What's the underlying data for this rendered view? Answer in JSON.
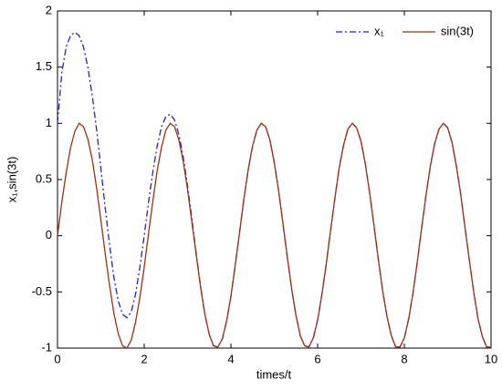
{
  "chart_data": {
    "type": "line",
    "x_label": "times/t",
    "y_label": "x₁,sin(3t)",
    "x": [
      0,
      0.1,
      0.2,
      0.3,
      0.4,
      0.5,
      0.6,
      0.7,
      0.8,
      0.9,
      1,
      1.1,
      1.2,
      1.3,
      1.4,
      1.5,
      1.6,
      1.7,
      1.8,
      1.9,
      2,
      2.1,
      2.2,
      2.3,
      2.4,
      2.5,
      2.6,
      2.7,
      2.8,
      2.9,
      3,
      3.1,
      3.2,
      3.3,
      3.4,
      3.5,
      3.6,
      3.7,
      3.8,
      3.9,
      4,
      4.1,
      4.2,
      4.3,
      4.4,
      4.5,
      4.6,
      4.7,
      4.8,
      4.9,
      5,
      5.1,
      5.2,
      5.3,
      5.4,
      5.5,
      5.6,
      5.7,
      5.8,
      5.9,
      6,
      6.1,
      6.2,
      6.3,
      6.4,
      6.5,
      6.6,
      6.7,
      6.8,
      6.9,
      7,
      7.1,
      7.2,
      7.3,
      7.4,
      7.5,
      7.6,
      7.7,
      7.8,
      7.9,
      8,
      8.1,
      8.2,
      8.3,
      8.4,
      8.5,
      8.6,
      8.7,
      8.8,
      8.9,
      9,
      9.1,
      9.2,
      9.3,
      9.4,
      9.5,
      9.6,
      9.7,
      9.8,
      9.9,
      10
    ],
    "series": [
      {
        "name": "x₁",
        "color": "#2222cc",
        "dash": "dashdot",
        "values": [
          1.0,
          1.45,
          1.68,
          1.78,
          1.81,
          1.78,
          1.68,
          1.5,
          1.25,
          0.95,
          0.6,
          0.25,
          -0.08,
          -0.37,
          -0.58,
          -0.7,
          -0.73,
          -0.68,
          -0.52,
          -0.28,
          0.0,
          0.3,
          0.57,
          0.8,
          0.97,
          1.06,
          1.08,
          1.03,
          0.9,
          0.7,
          0.44,
          0.15,
          -0.16,
          -0.45,
          -0.7,
          -0.88,
          -0.98,
          -0.99,
          -0.92,
          -0.76,
          -0.54,
          -0.26,
          0.03,
          0.33,
          0.59,
          0.8,
          0.94,
          1.0,
          0.97,
          0.85,
          0.65,
          0.4,
          0.11,
          -0.19,
          -0.47,
          -0.71,
          -0.89,
          -0.98,
          -0.99,
          -0.91,
          -0.75,
          -0.52,
          -0.25,
          0.05,
          0.34,
          0.61,
          0.81,
          0.95,
          1.0,
          0.96,
          0.84,
          0.64,
          0.38,
          0.09,
          -0.21,
          -0.49,
          -0.72,
          -0.89,
          -0.99,
          -0.99,
          -0.91,
          -0.74,
          -0.51,
          -0.23,
          0.07,
          0.36,
          0.62,
          0.82,
          0.95,
          1.0,
          0.96,
          0.83,
          0.62,
          0.37,
          0.07,
          -0.22,
          -0.5,
          -0.74,
          -0.9,
          -0.99,
          -0.99
        ]
      },
      {
        "name": "sin(3t)",
        "color": "#993311",
        "dash": "solid",
        "values": [
          0.0,
          0.3,
          0.56,
          0.78,
          0.93,
          1.0,
          0.97,
          0.86,
          0.68,
          0.43,
          0.14,
          -0.16,
          -0.44,
          -0.69,
          -0.87,
          -0.98,
          -1.0,
          -0.93,
          -0.77,
          -0.55,
          -0.28,
          0.02,
          0.31,
          0.58,
          0.79,
          0.94,
          1.0,
          0.97,
          0.85,
          0.66,
          0.41,
          0.12,
          -0.17,
          -0.46,
          -0.7,
          -0.88,
          -0.98,
          -0.99,
          -0.92,
          -0.76,
          -0.54,
          -0.26,
          0.03,
          0.33,
          0.59,
          0.8,
          0.94,
          1.0,
          0.97,
          0.85,
          0.65,
          0.4,
          0.11,
          -0.19,
          -0.47,
          -0.71,
          -0.89,
          -0.98,
          -0.99,
          -0.91,
          -0.75,
          -0.52,
          -0.25,
          0.05,
          0.34,
          0.61,
          0.81,
          0.95,
          1.0,
          0.96,
          0.84,
          0.64,
          0.38,
          0.09,
          -0.21,
          -0.49,
          -0.72,
          -0.89,
          -0.99,
          -0.99,
          -0.91,
          -0.74,
          -0.51,
          -0.23,
          0.07,
          0.36,
          0.62,
          0.82,
          0.95,
          1.0,
          0.96,
          0.83,
          0.62,
          0.37,
          0.07,
          -0.22,
          -0.5,
          -0.74,
          -0.9,
          -0.99,
          -0.99
        ]
      }
    ],
    "xlim": [
      0,
      10
    ],
    "xticks": [
      0,
      2,
      4,
      6,
      8,
      10
    ],
    "ylim": [
      -1,
      2
    ],
    "yticks": [
      -1,
      -0.5,
      0,
      0.5,
      1,
      1.5,
      2
    ],
    "grid": false,
    "legend": "upper-right"
  }
}
